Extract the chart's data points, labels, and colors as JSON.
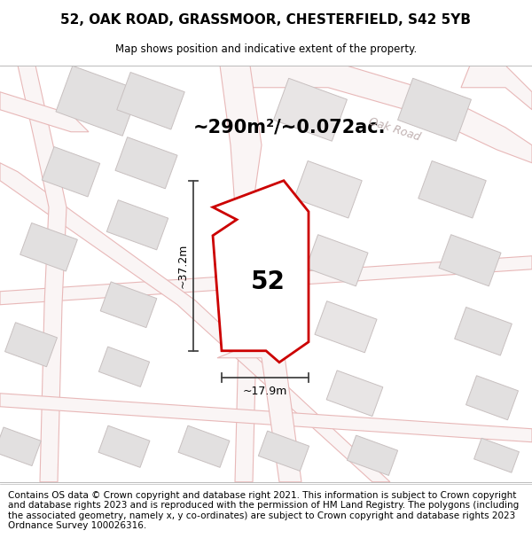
{
  "title_line1": "52, OAK ROAD, GRASSMOOR, CHESTERFIELD, S42 5YB",
  "title_line2": "Map shows position and indicative extent of the property.",
  "footer_text": "Contains OS data © Crown copyright and database right 2021. This information is subject to Crown copyright and database rights 2023 and is reproduced with the permission of HM Land Registry. The polygons (including the associated geometry, namely x, y co-ordinates) are subject to Crown copyright and database rights 2023 Ordnance Survey 100026316.",
  "area_label": "~290m²/~0.072ac.",
  "width_label": "~17.9m",
  "height_label": "~37.2m",
  "number_label": "52",
  "road_label": "Oak Road",
  "map_bg": "#f7f4f4",
  "plot_fill": "#ffffff",
  "plot_stroke": "#cc0000",
  "building_fill": "#e2e0e0",
  "road_line_color": "#e8b8b8",
  "dim_color": "#444444",
  "title_fontsize": 11,
  "footer_fontsize": 7.5,
  "road_label_color": "#c0b0b0"
}
